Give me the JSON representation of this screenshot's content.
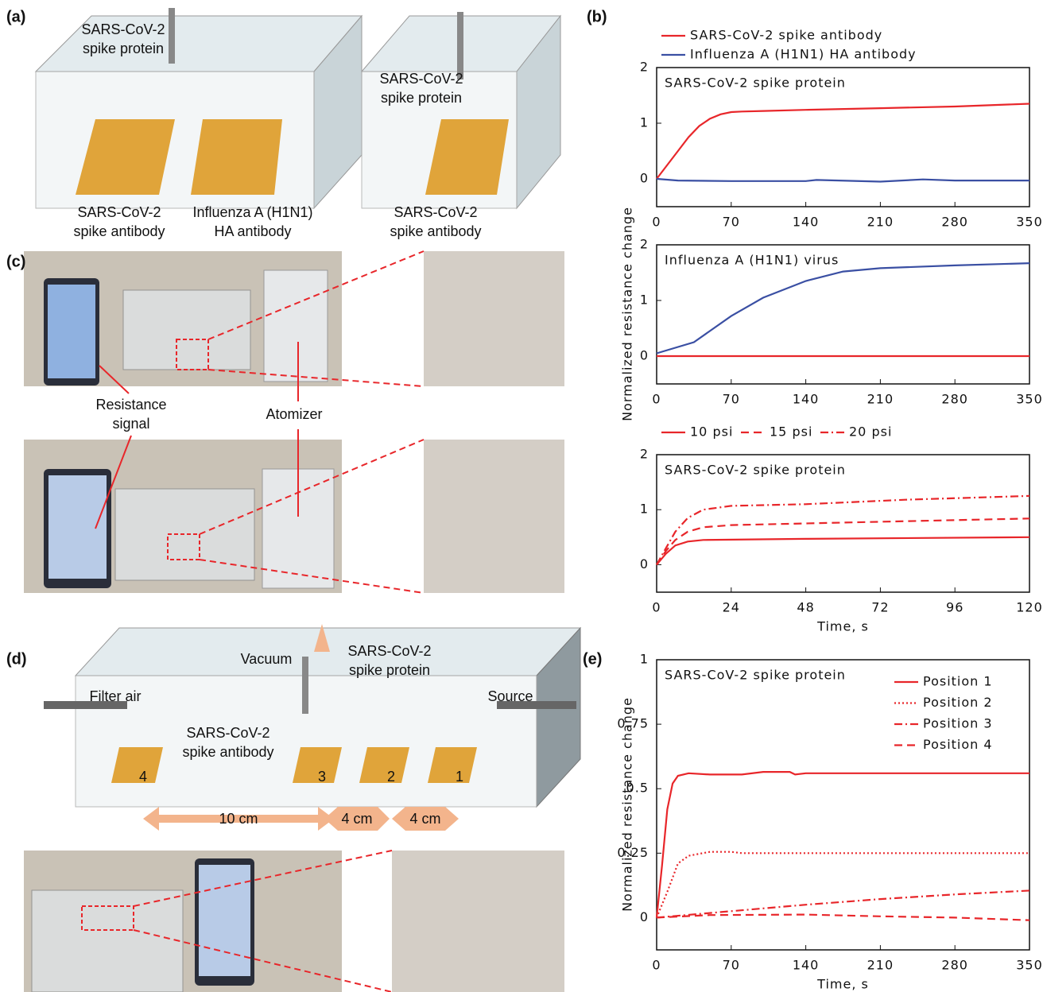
{
  "figure": {
    "a": {
      "label": "(a)",
      "spike_protein": [
        "SARS-CoV-2",
        "spike protein"
      ],
      "spike_antibody": [
        "SARS-CoV-2",
        "spike antibody"
      ],
      "ha_antibody": [
        "Influenza A (H1N1)",
        "HA antibody"
      ],
      "spike_protein_right": [
        "SARS-CoV-2",
        "spike protein"
      ],
      "spike_antibody_right": [
        "SARS-CoV-2",
        "spike antibody"
      ]
    },
    "c": {
      "label": "(c)",
      "resistance": [
        "Resistance",
        "signal"
      ],
      "atomizer": "Atomizer"
    },
    "d": {
      "label": "(d)",
      "vacuum": "Vacuum",
      "spike_protein": [
        "SARS-CoV-2",
        "spike protein"
      ],
      "filter_air": "Filter air",
      "source": "Source",
      "spike_antibody": [
        "SARS-CoV-2",
        "spike antibody"
      ],
      "positions": [
        "4",
        "3",
        "2",
        "1"
      ],
      "distances": [
        "10 cm",
        "4 cm",
        "4 cm"
      ]
    }
  },
  "chart_data": [
    {
      "type": "line",
      "panel": "(b)",
      "annotation": "SARS-CoV-2 spike protein",
      "ylabel": "Normalized resistance change",
      "xlim": [
        0,
        350
      ],
      "xticks": [
        0,
        70,
        140,
        210,
        280,
        350
      ],
      "ylim": [
        -0.5,
        2
      ],
      "yticks": [
        0,
        1,
        2
      ],
      "legend": "above",
      "series": [
        {
          "name": "SARS-CoV-2 spike antibody",
          "color": "#e8262a",
          "dash": "solid",
          "x": [
            0,
            10,
            20,
            30,
            40,
            50,
            60,
            70,
            80,
            100,
            140,
            210,
            280,
            350
          ],
          "values": [
            0,
            0.25,
            0.5,
            0.75,
            0.95,
            1.08,
            1.16,
            1.2,
            1.21,
            1.22,
            1.24,
            1.27,
            1.3,
            1.35
          ]
        },
        {
          "name": "Influenza A (H1N1) HA antibody",
          "color": "#3a4fa3",
          "dash": "solid",
          "x": [
            0,
            20,
            70,
            140,
            150,
            210,
            250,
            280,
            350
          ],
          "values": [
            0,
            -0.03,
            -0.04,
            -0.04,
            -0.02,
            -0.05,
            -0.01,
            -0.03,
            -0.03
          ]
        }
      ]
    },
    {
      "type": "line",
      "annotation": "Influenza A (H1N1) virus",
      "xlim": [
        0,
        350
      ],
      "xticks": [
        0,
        70,
        140,
        210,
        280,
        350
      ],
      "ylim": [
        -0.5,
        2
      ],
      "yticks": [
        0,
        1,
        2
      ],
      "legend": "none",
      "series": [
        {
          "color": "#3a4fa3",
          "dash": "solid",
          "x": [
            0,
            35,
            70,
            100,
            140,
            175,
            210,
            280,
            350
          ],
          "values": [
            0.05,
            0.25,
            0.72,
            1.05,
            1.35,
            1.52,
            1.58,
            1.63,
            1.67
          ]
        },
        {
          "color": "#e8262a",
          "dash": "solid",
          "x": [
            0,
            350
          ],
          "values": [
            0,
            0
          ]
        }
      ]
    },
    {
      "type": "line",
      "annotation": "SARS-CoV-2 spike protein",
      "xlabel": "Time, s",
      "xlim": [
        0,
        120
      ],
      "xticks": [
        0,
        24,
        48,
        72,
        96,
        120
      ],
      "ylim": [
        -0.5,
        2
      ],
      "yticks": [
        0,
        1,
        2
      ],
      "legend": "above",
      "series": [
        {
          "name": "10 psi",
          "color": "#e8262a",
          "dash": "solid",
          "x": [
            0,
            3,
            6,
            10,
            15,
            48,
            120
          ],
          "values": [
            0,
            0.2,
            0.35,
            0.42,
            0.45,
            0.47,
            0.5
          ]
        },
        {
          "name": "15 psi",
          "color": "#e8262a",
          "dash": "dashed",
          "x": [
            0,
            3,
            6,
            10,
            15,
            24,
            48,
            72,
            120
          ],
          "values": [
            0,
            0.25,
            0.45,
            0.6,
            0.68,
            0.72,
            0.75,
            0.78,
            0.84
          ]
        },
        {
          "name": "20 psi",
          "color": "#e8262a",
          "dash": "dashdot",
          "x": [
            0,
            3,
            6,
            10,
            15,
            24,
            48,
            60,
            80,
            120
          ],
          "values": [
            0,
            0.3,
            0.6,
            0.85,
            1.0,
            1.07,
            1.1,
            1.13,
            1.18,
            1.25
          ]
        }
      ]
    },
    {
      "type": "line",
      "panel": "(e)",
      "annotation": "SARS-CoV-2 spike protein",
      "ylabel": "Normalized resistance change",
      "xlabel": "Time, s",
      "xlim": [
        0,
        350
      ],
      "xticks": [
        0,
        70,
        140,
        210,
        280,
        350
      ],
      "ylim": [
        -0.125,
        1
      ],
      "yticks": [
        0,
        0.25,
        0.5,
        0.75,
        1
      ],
      "legend": "upper right",
      "series": [
        {
          "name": "Position 1",
          "color": "#e8262a",
          "dash": "solid",
          "x": [
            0,
            5,
            10,
            15,
            20,
            30,
            50,
            80,
            100,
            125,
            130,
            140,
            350
          ],
          "values": [
            0,
            0.2,
            0.42,
            0.52,
            0.55,
            0.56,
            0.555,
            0.555,
            0.565,
            0.565,
            0.555,
            0.56,
            0.56
          ]
        },
        {
          "name": "Position 2",
          "color": "#e8262a",
          "dash": "dotted",
          "x": [
            0,
            10,
            20,
            30,
            50,
            70,
            80,
            350
          ],
          "values": [
            0,
            0.1,
            0.21,
            0.24,
            0.255,
            0.255,
            0.25,
            0.25
          ]
        },
        {
          "name": "Position 3",
          "color": "#e8262a",
          "dash": "dashdot",
          "x": [
            0,
            70,
            140,
            210,
            280,
            350
          ],
          "values": [
            0,
            0.025,
            0.05,
            0.072,
            0.09,
            0.105
          ]
        },
        {
          "name": "Position 4",
          "color": "#e8262a",
          "dash": "dashed",
          "x": [
            0,
            50,
            140,
            210,
            280,
            350
          ],
          "values": [
            0,
            0.01,
            0.012,
            0.005,
            0,
            -0.01
          ]
        }
      ]
    }
  ]
}
